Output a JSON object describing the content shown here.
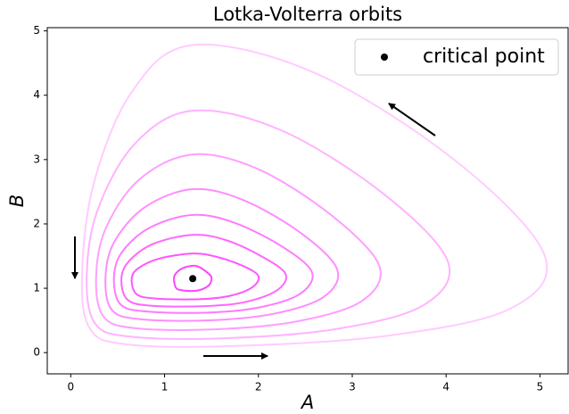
{
  "chart_data": {
    "type": "line",
    "title": "Lotka-Volterra orbits",
    "xlabel": "A",
    "ylabel": "B",
    "xlim": [
      -0.25,
      5.3
    ],
    "ylim": [
      -0.33,
      5.05
    ],
    "xticks": [
      0,
      1,
      2,
      3,
      4,
      5
    ],
    "yticks": [
      0,
      1,
      2,
      3,
      4,
      5
    ],
    "grid": false,
    "legend": "upper right",
    "series": [
      {
        "color": "#ffccff",
        "x": [
          0.12,
          0.21,
          0.59,
          1.68,
          3.36,
          4.68,
          5.05,
          4.11,
          2.61,
          1.3,
          0.65,
          0.24
        ],
        "y": [
          1.15,
          0.36,
          0.13,
          0.1,
          0.26,
          0.68,
          1.51,
          2.97,
          4.34,
          4.78,
          4.05,
          2.6
        ]
      },
      {
        "color": "#ffb3ff",
        "x": [
          0.17,
          0.26,
          0.62,
          1.57,
          2.8,
          3.75,
          4.02,
          3.34,
          2.25,
          1.3,
          0.68,
          0.28
        ],
        "y": [
          1.15,
          0.45,
          0.25,
          0.22,
          0.36,
          0.73,
          1.41,
          2.46,
          3.45,
          3.76,
          3.24,
          2.19
        ]
      },
      {
        "color": "#ff9eff",
        "x": [
          0.27,
          0.35,
          0.68,
          1.5,
          2.39,
          3.09,
          3.29,
          2.79,
          2.0,
          1.3,
          0.73,
          0.37
        ],
        "y": [
          1.15,
          0.56,
          0.38,
          0.36,
          0.48,
          0.79,
          1.34,
          2.12,
          2.85,
          3.08,
          2.69,
          1.92
        ]
      },
      {
        "color": "#ff8cff",
        "x": [
          0.37,
          0.44,
          0.74,
          1.45,
          2.15,
          2.69,
          2.84,
          2.46,
          1.84,
          1.3,
          0.79,
          0.46
        ],
        "y": [
          1.15,
          0.66,
          0.52,
          0.5,
          0.6,
          0.86,
          1.29,
          1.85,
          2.37,
          2.54,
          2.26,
          1.71
        ]
      },
      {
        "color": "#ff7aff",
        "x": [
          0.46,
          0.53,
          0.8,
          1.43,
          2.0,
          2.44,
          2.57,
          2.25,
          1.74,
          1.3,
          0.84,
          0.54
        ],
        "y": [
          1.15,
          0.75,
          0.64,
          0.62,
          0.7,
          0.91,
          1.25,
          1.65,
          2.02,
          2.14,
          1.94,
          1.55
        ]
      },
      {
        "color": "#ff66ff",
        "x": [
          0.54,
          0.6,
          0.84,
          1.4,
          1.84,
          2.19,
          2.29,
          2.04,
          1.65,
          1.3,
          0.88,
          0.62
        ],
        "y": [
          1.15,
          0.83,
          0.73,
          0.72,
          0.78,
          0.96,
          1.22,
          1.49,
          1.75,
          1.83,
          1.69,
          1.42
        ]
      },
      {
        "color": "#ff55ff",
        "x": [
          0.65,
          0.7,
          0.91,
          1.37,
          1.69,
          1.93,
          2.0,
          1.83,
          1.55,
          1.3,
          0.94,
          0.72
        ],
        "y": [
          1.15,
          0.91,
          0.84,
          0.83,
          0.88,
          1.01,
          1.19,
          1.35,
          1.49,
          1.54,
          1.46,
          1.31
        ]
      },
      {
        "color": "#ff44ff",
        "x": [
          1.1,
          1.12,
          1.18,
          1.32,
          1.41,
          1.48,
          1.5,
          1.45,
          1.37,
          1.3,
          1.19,
          1.12
        ],
        "y": [
          1.15,
          1.01,
          0.97,
          0.96,
          0.99,
          1.06,
          1.17,
          1.25,
          1.33,
          1.35,
          1.31,
          1.23
        ]
      }
    ],
    "points": [
      {
        "name": "critical point",
        "color": "#000000",
        "x": [
          1.3
        ],
        "y": [
          1.15
        ]
      }
    ]
  }
}
